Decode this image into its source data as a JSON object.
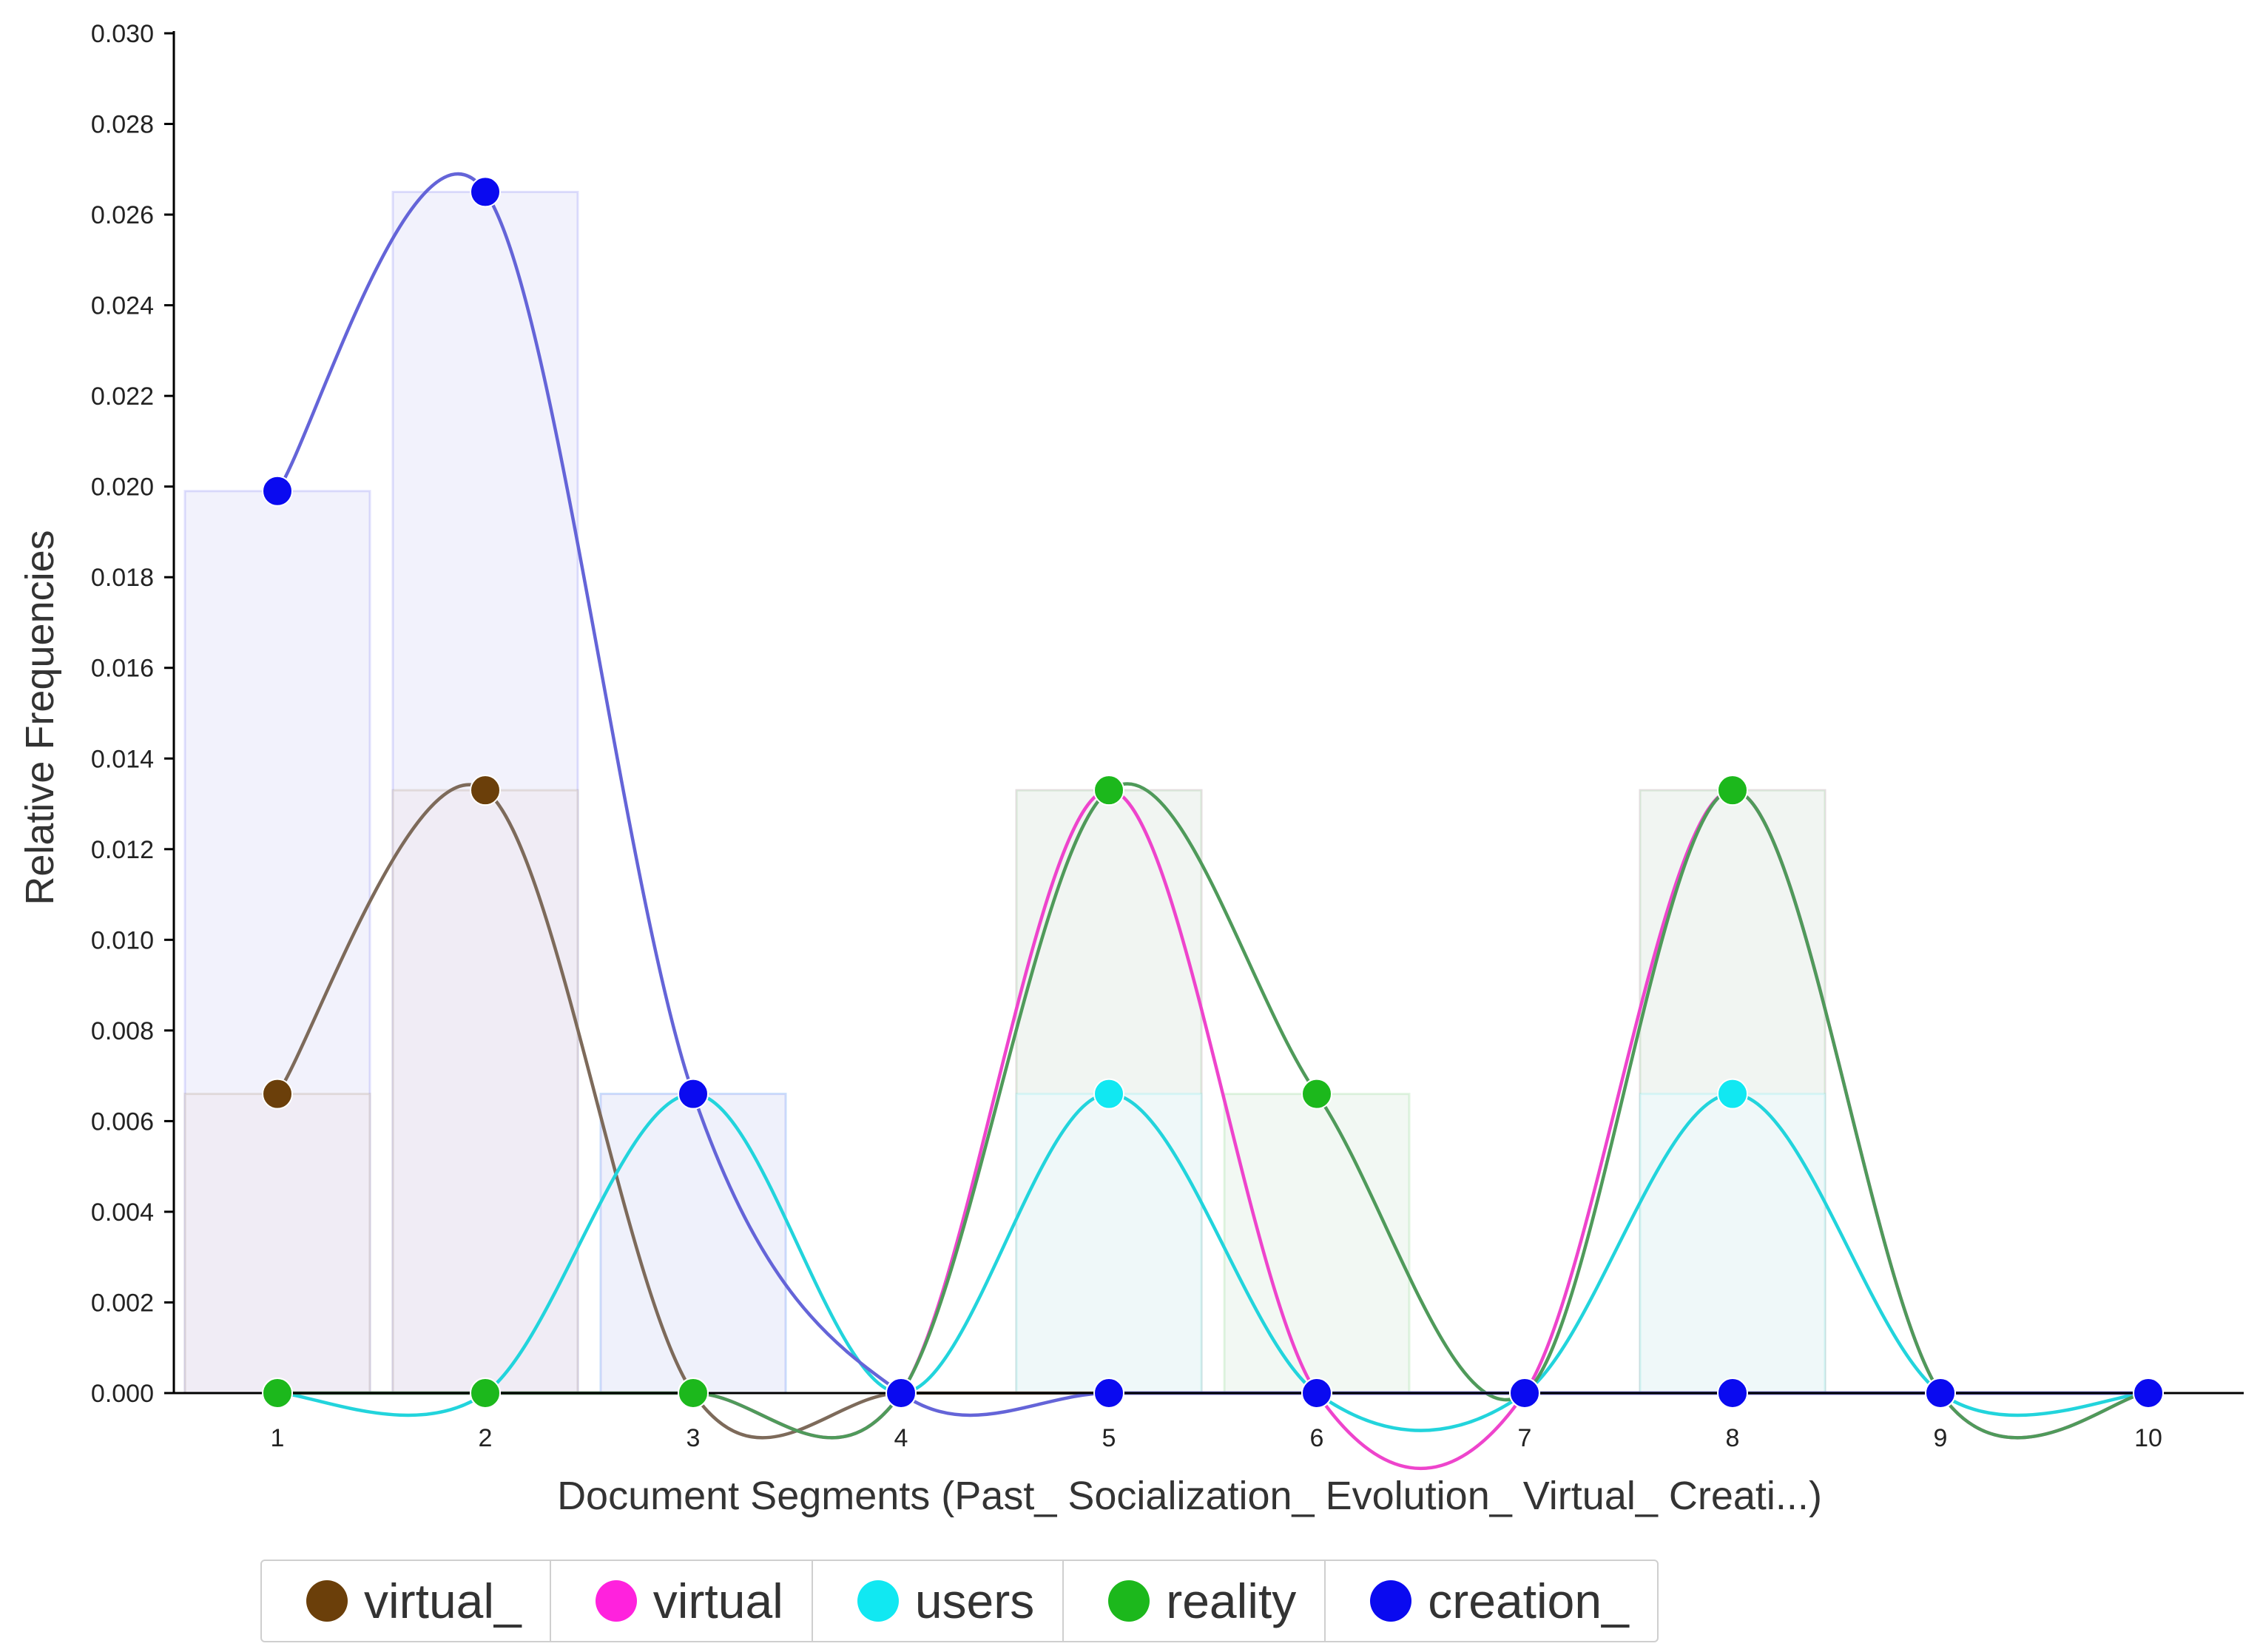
{
  "chart_data": {
    "type": "line",
    "title": "",
    "xlabel": "Document Segments (Past_ Socialization_ Evolution_ Virtual_ Creati...)",
    "ylabel": "Relative Frequencies",
    "x": [
      1,
      2,
      3,
      4,
      5,
      6,
      7,
      8,
      9,
      10
    ],
    "ylim": [
      0,
      0.03
    ],
    "yticks": [
      "0.000",
      "0.002",
      "0.004",
      "0.006",
      "0.008",
      "0.010",
      "0.012",
      "0.014",
      "0.016",
      "0.018",
      "0.020",
      "0.022",
      "0.024",
      "0.026",
      "0.028",
      "0.030"
    ],
    "xticks": [
      "1",
      "2",
      "3",
      "4",
      "5",
      "6",
      "7",
      "8",
      "9",
      "10"
    ],
    "grid": false,
    "legend_position": "bottom",
    "background_bars": true,
    "series": [
      {
        "name": "virtual_",
        "color": "#6b3f0a",
        "line_color": "#7d6a5a",
        "values": [
          0.0066,
          0.0133,
          0,
          0,
          0,
          0,
          0,
          0,
          0,
          0
        ]
      },
      {
        "name": "virtual",
        "color": "#ff22dd",
        "line_color": "#ee44cc",
        "values": [
          0,
          0,
          0,
          0,
          0.0133,
          0,
          0,
          0.0133,
          0,
          0
        ]
      },
      {
        "name": "users",
        "color": "#11e8f2",
        "line_color": "#22d4dc",
        "values": [
          0,
          0,
          0.0066,
          0,
          0.0066,
          0,
          0,
          0.0066,
          0,
          0
        ]
      },
      {
        "name": "reality",
        "color": "#1cb81c",
        "line_color": "#4f9a5a",
        "values": [
          0,
          0,
          0,
          0,
          0.0133,
          0.0066,
          0,
          0.0133,
          0,
          0
        ]
      },
      {
        "name": "creation_",
        "color": "#0a0af0",
        "line_color": "#6464d8",
        "values": [
          0.0199,
          0.0265,
          0.0066,
          0,
          0,
          0,
          0,
          0,
          0,
          0
        ]
      }
    ]
  }
}
